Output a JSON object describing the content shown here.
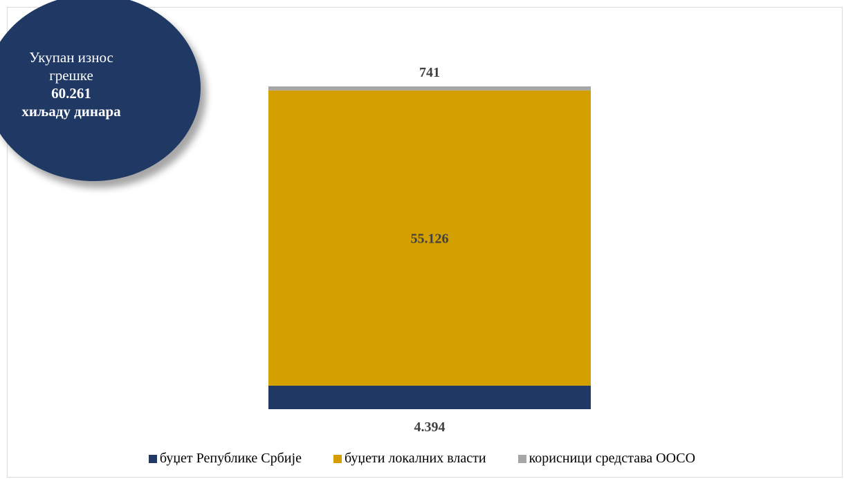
{
  "callout": {
    "line1": "Укупан износ",
    "line2": "грешке",
    "amount": "60.261",
    "unit": "хиљаду динара"
  },
  "chart_data": {
    "type": "bar",
    "stacked": true,
    "categories": [
      ""
    ],
    "series": [
      {
        "name": "буџет Републике Србије",
        "values": [
          4394
        ],
        "label": "4.394",
        "color": "#1f3864"
      },
      {
        "name": "буџети локалних власти",
        "values": [
          55126
        ],
        "label": "55.126",
        "color": "#d4a000"
      },
      {
        "name": "корисници средстава ООСО",
        "values": [
          741
        ],
        "label": "741",
        "color": "#a6a6a6"
      }
    ],
    "total": 60261,
    "title": "",
    "xlabel": "",
    "ylabel": "",
    "legend_position": "bottom",
    "grid": false
  }
}
